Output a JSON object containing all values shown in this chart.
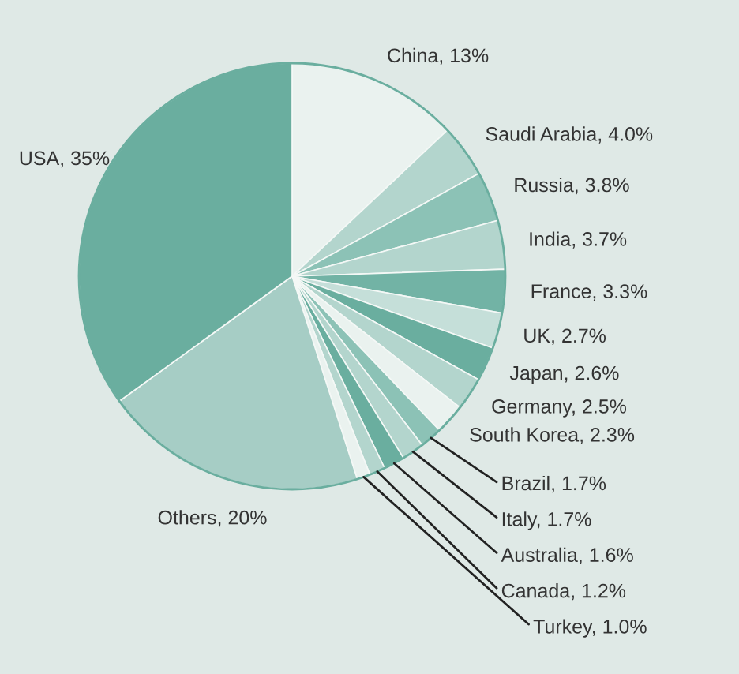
{
  "chart_data": {
    "type": "pie",
    "categories": [
      "China",
      "Saudi Arabia",
      "Russia",
      "India",
      "France",
      "UK",
      "Japan",
      "Germany",
      "South Korea",
      "Brazil",
      "Italy",
      "Australia",
      "Canada",
      "Turkey",
      "Others",
      "USA"
    ],
    "values": [
      13,
      4.0,
      3.8,
      3.7,
      3.3,
      2.7,
      2.6,
      2.5,
      2.3,
      1.7,
      1.7,
      1.6,
      1.2,
      1.0,
      20,
      35
    ],
    "value_labels": [
      "13%",
      "4.0%",
      "3.8%",
      "3.7%",
      "3.3%",
      "2.7%",
      "2.6%",
      "2.5%",
      "2.3%",
      "1.7%",
      "1.7%",
      "1.6%",
      "1.2%",
      "1.0%",
      "20%",
      "35%"
    ],
    "colors": [
      "#eaf2ef",
      "#b3d5cd",
      "#8cc2b6",
      "#b3d5cd",
      "#72b3a5",
      "#c5dfd9",
      "#6aae9f",
      "#b3d5cd",
      "#eaf2ef",
      "#8cc2b6",
      "#b3d5cd",
      "#6aae9f",
      "#b3d5cd",
      "#eaf2ef",
      "#a6cdc5",
      "#6aae9f"
    ],
    "legend": false
  }
}
